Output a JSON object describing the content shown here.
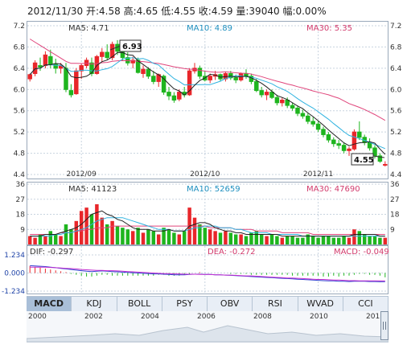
{
  "header": {
    "date": "2012/11/30",
    "open_label": "开:",
    "open": "4.58",
    "high_label": "高:",
    "high": "4.65",
    "low_label": "低:",
    "low": "4.55",
    "close_label": "收:",
    "close": "4.59",
    "volume_label": "量:",
    "volume": "39040",
    "change_label": "幅:",
    "change": "0.00%"
  },
  "price_panel": {
    "ma5_label": "MA5: 4.71",
    "ma10_label": "MA10: 4.89",
    "ma30_label": "MA30: 5.35",
    "max_callout": "6.93",
    "min_callout": "4.55",
    "y_ticks": [
      "7.2",
      "6.8",
      "6.4",
      "6.0",
      "5.6",
      "5.2",
      "4.8",
      "4.4"
    ],
    "x_ticks": [
      "2012/09",
      "2012/10",
      "2012/11"
    ]
  },
  "volume_panel": {
    "ma5_label": "MA5: 41123",
    "ma10_label": "MA10: 52659",
    "ma30_label": "MA30: 47690",
    "y_ticks": [
      "36",
      "27",
      "18",
      "9"
    ]
  },
  "macd_panel": {
    "dif_label": "DIF: -0.297",
    "dea_label": "DEA: -0.272",
    "macd_label": "MACD: -0.049",
    "y_ticks": [
      "1.234",
      "0.000",
      "-1.234"
    ]
  },
  "tabs": [
    "MACD",
    "KDJ",
    "BOLL",
    "PSY",
    "OBV",
    "RSI",
    "WVAD",
    "CCI"
  ],
  "navigator": {
    "years": [
      "2000",
      "2002",
      "2004",
      "2006",
      "2008",
      "2010",
      "201"
    ]
  },
  "colors": {
    "up": "#e8262a",
    "down": "#1eb51e",
    "ma5": "#222222",
    "ma10": "#2fb3e0",
    "ma30": "#e0457b",
    "grid": "#c8d3df",
    "axis_text": "#333333",
    "label_ma5": "#333333",
    "label_ma10": "#1e8fbf",
    "label_ma30": "#d23a6c"
  },
  "chart_data": {
    "type": "candlestick",
    "ylim": [
      4.4,
      7.2
    ],
    "volume_ylim": [
      0,
      36
    ],
    "macd_ylim": [
      -1.234,
      1.234
    ],
    "candles": [
      [
        6.2,
        6.3,
        6.15,
        6.28
      ],
      [
        6.3,
        6.55,
        6.25,
        6.5
      ],
      [
        6.45,
        6.6,
        6.35,
        6.42
      ],
      [
        6.45,
        6.72,
        6.4,
        6.65
      ],
      [
        6.62,
        6.75,
        6.4,
        6.48
      ],
      [
        6.48,
        6.58,
        6.3,
        6.4
      ],
      [
        6.4,
        6.5,
        6.3,
        6.45
      ],
      [
        6.4,
        6.5,
        5.95,
        6.0
      ],
      [
        5.98,
        6.1,
        5.85,
        5.9
      ],
      [
        5.92,
        6.4,
        5.9,
        6.35
      ],
      [
        6.35,
        6.48,
        6.2,
        6.45
      ],
      [
        6.45,
        6.6,
        6.4,
        6.55
      ],
      [
        6.5,
        6.6,
        6.25,
        6.3
      ],
      [
        6.3,
        6.65,
        6.28,
        6.62
      ],
      [
        6.62,
        6.78,
        6.52,
        6.7
      ],
      [
        6.7,
        6.85,
        6.55,
        6.6
      ],
      [
        6.6,
        6.9,
        6.55,
        6.85
      ],
      [
        6.85,
        6.93,
        6.65,
        6.72
      ],
      [
        6.7,
        6.78,
        6.55,
        6.6
      ],
      [
        6.6,
        6.7,
        6.45,
        6.5
      ],
      [
        6.5,
        6.62,
        6.4,
        6.55
      ],
      [
        6.55,
        6.6,
        6.3,
        6.32
      ],
      [
        6.3,
        6.45,
        6.22,
        6.38
      ],
      [
        6.38,
        6.42,
        6.2,
        6.25
      ],
      [
        6.25,
        6.35,
        6.1,
        6.15
      ],
      [
        6.15,
        6.3,
        6.05,
        6.28
      ],
      [
        6.25,
        6.28,
        5.9,
        5.95
      ],
      [
        5.95,
        6.05,
        5.8,
        5.88
      ],
      [
        5.88,
        5.95,
        5.75,
        5.8
      ],
      [
        5.82,
        6.0,
        5.78,
        5.95
      ],
      [
        5.95,
        6.05,
        5.85,
        5.9
      ],
      [
        5.9,
        6.4,
        5.88,
        6.35
      ],
      [
        6.35,
        6.5,
        6.3,
        6.4
      ],
      [
        6.4,
        6.45,
        6.2,
        6.25
      ],
      [
        6.25,
        6.35,
        6.15,
        6.18
      ],
      [
        6.18,
        6.3,
        6.12,
        6.25
      ],
      [
        6.25,
        6.35,
        6.18,
        6.28
      ],
      [
        6.28,
        6.3,
        6.15,
        6.2
      ],
      [
        6.2,
        6.33,
        6.15,
        6.3
      ],
      [
        6.3,
        6.35,
        6.18,
        6.22
      ],
      [
        6.22,
        6.28,
        6.12,
        6.18
      ],
      [
        6.18,
        6.32,
        6.15,
        6.3
      ],
      [
        6.3,
        6.38,
        6.2,
        6.25
      ],
      [
        6.25,
        6.3,
        6.1,
        6.15
      ],
      [
        6.15,
        6.2,
        5.95,
        5.98
      ],
      [
        5.98,
        6.05,
        5.85,
        5.9
      ],
      [
        5.9,
        6.0,
        5.8,
        5.95
      ],
      [
        5.95,
        6.0,
        5.82,
        5.85
      ],
      [
        5.85,
        5.9,
        5.7,
        5.75
      ],
      [
        5.75,
        5.85,
        5.68,
        5.8
      ],
      [
        5.8,
        5.85,
        5.65,
        5.7
      ],
      [
        5.7,
        5.75,
        5.6,
        5.65
      ],
      [
        5.65,
        5.7,
        5.5,
        5.55
      ],
      [
        5.55,
        5.62,
        5.45,
        5.5
      ],
      [
        5.5,
        5.55,
        5.35,
        5.4
      ],
      [
        5.4,
        5.48,
        5.3,
        5.35
      ],
      [
        5.35,
        5.4,
        5.2,
        5.25
      ],
      [
        5.25,
        5.3,
        5.1,
        5.15
      ],
      [
        5.15,
        5.2,
        5.0,
        5.05
      ],
      [
        5.05,
        5.1,
        4.92,
        4.98
      ],
      [
        4.98,
        5.05,
        4.88,
        4.95
      ],
      [
        4.95,
        5.0,
        4.8,
        4.85
      ],
      [
        4.85,
        4.92,
        4.75,
        4.88
      ],
      [
        4.88,
        5.25,
        4.85,
        5.2
      ],
      [
        5.2,
        5.4,
        5.05,
        5.1
      ],
      [
        5.1,
        5.15,
        4.95,
        5.0
      ],
      [
        5.0,
        5.08,
        4.85,
        4.9
      ],
      [
        4.9,
        4.95,
        4.7,
        4.75
      ],
      [
        4.75,
        4.8,
        4.62,
        4.65
      ],
      [
        4.58,
        4.65,
        4.55,
        4.59
      ]
    ],
    "volumes": [
      5,
      4,
      6,
      5,
      8,
      6,
      5,
      12,
      9,
      14,
      20,
      22,
      18,
      24,
      16,
      12,
      14,
      11,
      10,
      9,
      8,
      10,
      7,
      9,
      8,
      6,
      10,
      9,
      7,
      6,
      8,
      22,
      16,
      12,
      10,
      9,
      8,
      7,
      8,
      7,
      6,
      6,
      5,
      7,
      8,
      6,
      5,
      6,
      5,
      4,
      5,
      5,
      4,
      4,
      6,
      5,
      4,
      5,
      5,
      4,
      4,
      5,
      4,
      9,
      8,
      6,
      5,
      5,
      4,
      4
    ],
    "volume_ma": {
      "ma5": [
        5,
        5,
        5,
        6,
        6,
        6,
        7,
        8,
        9,
        10,
        12,
        15,
        18,
        19,
        20,
        18,
        17,
        15,
        14,
        12,
        10,
        9,
        9,
        9,
        8,
        8,
        8,
        9,
        8,
        8,
        8,
        11,
        12,
        13,
        13,
        12,
        10,
        9,
        8,
        8,
        7,
        7,
        6,
        6,
        6,
        6,
        6,
        6,
        6,
        5,
        5,
        5,
        5,
        5,
        5,
        5,
        5,
        5,
        5,
        5,
        5,
        5,
        5,
        6,
        6,
        6,
        6,
        6,
        5,
        5
      ],
      "ma10": [
        5,
        5,
        5,
        5,
        5,
        6,
        6,
        7,
        7,
        8,
        9,
        10,
        12,
        14,
        15,
        16,
        16,
        16,
        16,
        15,
        14,
        13,
        12,
        11,
        10,
        9,
        9,
        9,
        8,
        8,
        8,
        9,
        10,
        10,
        11,
        11,
        11,
        10,
        10,
        10,
        9,
        9,
        8,
        7,
        7,
        7,
        7,
        6,
        6,
        6,
        6,
        6,
        6,
        5,
        5,
        5,
        5,
        5,
        5,
        5,
        5,
        5,
        5,
        5,
        5,
        5,
        5,
        5,
        5,
        5
      ],
      "ma30": [
        6,
        6,
        6,
        6,
        6,
        6,
        7,
        7,
        7,
        8,
        8,
        9,
        9,
        10,
        10,
        10,
        11,
        11,
        11,
        11,
        11,
        11,
        11,
        11,
        11,
        11,
        11,
        11,
        11,
        11,
        11,
        11,
        11,
        11,
        11,
        10,
        10,
        10,
        10,
        10,
        9,
        9,
        9,
        9,
        8,
        8,
        8,
        8,
        8,
        7,
        7,
        7,
        7,
        7,
        7,
        6,
        6,
        6,
        6,
        6,
        6,
        6,
        6,
        6,
        6,
        6,
        6,
        6,
        6,
        6
      ]
    },
    "macd": {
      "dif": [
        0.25,
        0.24,
        0.23,
        0.22,
        0.2,
        0.18,
        0.16,
        0.14,
        0.12,
        0.1,
        0.08,
        0.06,
        0.05,
        0.06,
        0.07,
        0.06,
        0.05,
        0.04,
        0.03,
        0.02,
        0.01,
        0.0,
        -0.01,
        -0.02,
        -0.03,
        -0.03,
        -0.04,
        -0.05,
        -0.06,
        -0.06,
        -0.06,
        -0.05,
        -0.04,
        -0.04,
        -0.05,
        -0.05,
        -0.06,
        -0.06,
        -0.07,
        -0.08,
        -0.09,
        -0.1,
        -0.11,
        -0.12,
        -0.13,
        -0.14,
        -0.15,
        -0.16,
        -0.17,
        -0.18,
        -0.19,
        -0.2,
        -0.21,
        -0.22,
        -0.23,
        -0.24,
        -0.25,
        -0.26,
        -0.27,
        -0.27,
        -0.28,
        -0.28,
        -0.29,
        -0.28,
        -0.28,
        -0.28,
        -0.29,
        -0.29,
        -0.3,
        -0.297
      ],
      "dea": [
        0.2,
        0.2,
        0.2,
        0.2,
        0.19,
        0.18,
        0.17,
        0.16,
        0.15,
        0.14,
        0.12,
        0.11,
        0.1,
        0.09,
        0.09,
        0.08,
        0.08,
        0.07,
        0.06,
        0.05,
        0.04,
        0.03,
        0.02,
        0.01,
        0.0,
        -0.01,
        -0.02,
        -0.02,
        -0.03,
        -0.03,
        -0.04,
        -0.04,
        -0.04,
        -0.05,
        -0.05,
        -0.05,
        -0.06,
        -0.06,
        -0.07,
        -0.07,
        -0.08,
        -0.09,
        -0.1,
        -0.1,
        -0.11,
        -0.12,
        -0.13,
        -0.14,
        -0.15,
        -0.16,
        -0.17,
        -0.17,
        -0.18,
        -0.19,
        -0.2,
        -0.21,
        -0.22,
        -0.22,
        -0.23,
        -0.24,
        -0.24,
        -0.25,
        -0.26,
        -0.26,
        -0.27,
        -0.27,
        -0.27,
        -0.27,
        -0.27,
        -0.272
      ],
      "hist": [
        0.08,
        0.07,
        0.06,
        0.05,
        0.04,
        0.03,
        0.02,
        0.01,
        -0.01,
        -0.02,
        -0.03,
        -0.04,
        -0.04,
        -0.03,
        -0.02,
        -0.02,
        -0.03,
        -0.03,
        -0.03,
        -0.03,
        -0.03,
        -0.03,
        -0.03,
        -0.03,
        -0.03,
        -0.02,
        -0.02,
        -0.03,
        -0.03,
        -0.03,
        -0.02,
        -0.01,
        0.0,
        0.01,
        0.0,
        0.0,
        0.0,
        0.0,
        0.0,
        -0.01,
        -0.01,
        -0.01,
        -0.01,
        -0.02,
        -0.02,
        -0.02,
        -0.02,
        -0.02,
        -0.02,
        -0.02,
        -0.02,
        -0.03,
        -0.03,
        -0.03,
        -0.03,
        -0.03,
        -0.03,
        -0.04,
        -0.04,
        -0.03,
        -0.04,
        -0.03,
        -0.03,
        -0.02,
        -0.01,
        -0.01,
        -0.02,
        -0.02,
        -0.03,
        -0.049
      ]
    }
  }
}
